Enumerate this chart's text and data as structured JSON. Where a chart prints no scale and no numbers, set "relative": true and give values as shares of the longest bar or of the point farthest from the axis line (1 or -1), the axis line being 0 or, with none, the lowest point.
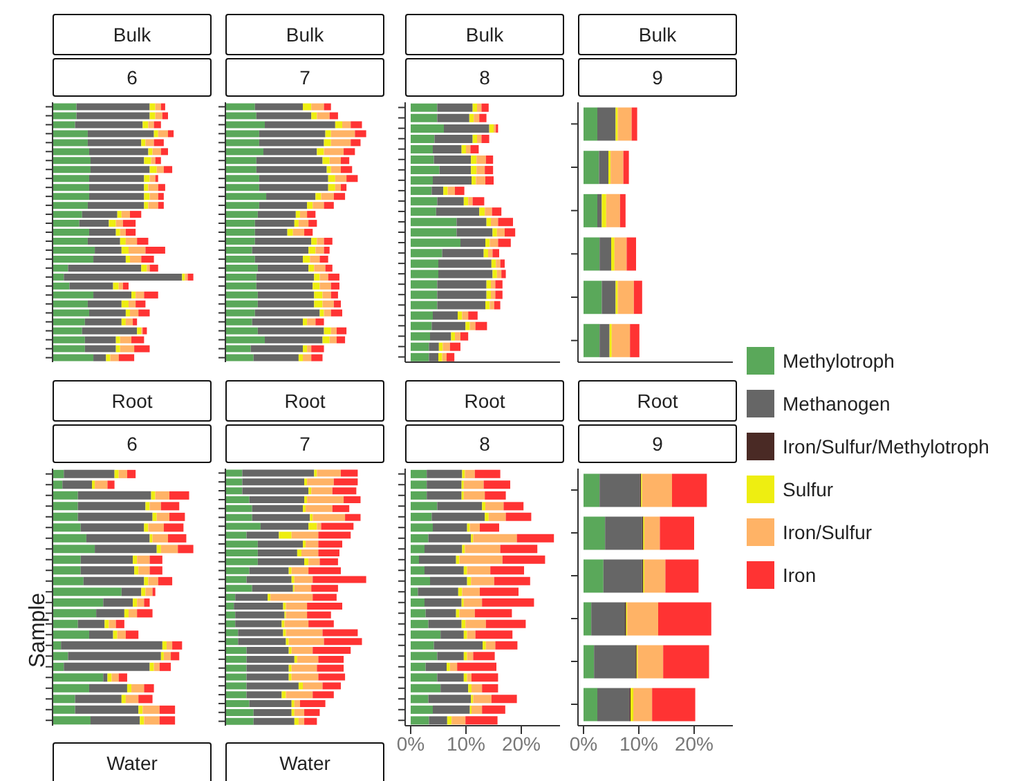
{
  "chart_data": [
    {
      "type": "bar",
      "stacked": true,
      "orientation": "horizontal",
      "title": "Bulk",
      "subtitle": "6",
      "tick_labels": false,
      "relative": true,
      "categories": [
        null,
        null,
        null,
        null,
        null,
        null,
        null,
        null,
        null,
        null,
        null,
        null,
        null,
        null,
        null,
        null,
        null,
        null,
        null,
        null,
        null,
        null,
        null,
        null,
        null,
        null,
        null,
        null,
        null
      ],
      "series": [
        {
          "color": "#5aa85a",
          "values": [
            0.17,
            0.17,
            0.16,
            0.25,
            0.25,
            0.26,
            0.27,
            0.27,
            0.26,
            0.26,
            0.26,
            0.25,
            0.21,
            0.19,
            0.26,
            0.25,
            0.3,
            0.29,
            0.11,
            0.08,
            0.12,
            0.29,
            0.25,
            0.26,
            0.23,
            0.21,
            0.23,
            0.23,
            0.29
          ]
        },
        {
          "color": "#666666",
          "values": [
            0.52,
            0.52,
            0.48,
            0.47,
            0.38,
            0.42,
            0.38,
            0.42,
            0.39,
            0.39,
            0.39,
            0.4,
            0.25,
            0.21,
            0.19,
            0.23,
            0.19,
            0.23,
            0.52,
            0.84,
            0.31,
            0.27,
            0.24,
            0.26,
            0.26,
            0.39,
            0.22,
            0.22,
            0.09
          ]
        },
        {
          "color": "#eeee11",
          "values": [
            0.04,
            0.04,
            0.04,
            0.03,
            0.03,
            0.03,
            0.05,
            0.05,
            0.04,
            0.03,
            0.04,
            0.03,
            0.03,
            0.05,
            0.03,
            0.04,
            0.05,
            0.03,
            0.04,
            0.02,
            0.04,
            0.03,
            0.05,
            0.03,
            0.03,
            0.03,
            0.03,
            0.03,
            0.03
          ]
        },
        {
          "color": "#ffb366",
          "values": [
            0.04,
            0.05,
            0.04,
            0.07,
            0.06,
            0.06,
            0.03,
            0.05,
            0.04,
            0.07,
            0.06,
            0.07,
            0.06,
            0.05,
            0.04,
            0.08,
            0.12,
            0.08,
            0.02,
            0.02,
            0.03,
            0.06,
            0.05,
            0.06,
            0.05,
            0.01,
            0.08,
            0.1,
            0.06
          ]
        },
        {
          "color": "#ff3333",
          "values": [
            0.03,
            0.04,
            0.05,
            0.04,
            0.07,
            0.05,
            0.04,
            0.06,
            0.02,
            0.05,
            0.04,
            0.04,
            0.08,
            0.09,
            0.07,
            0.08,
            0.14,
            0.09,
            0.06,
            0.04,
            0.04,
            0.1,
            0.07,
            0.08,
            0.03,
            0.03,
            0.09,
            0.11,
            0.11
          ]
        }
      ]
    },
    {
      "type": "bar",
      "stacked": true,
      "orientation": "horizontal",
      "title": "Bulk",
      "subtitle": "7",
      "tick_labels": false,
      "relative": true,
      "categories": [
        null,
        null,
        null,
        null,
        null,
        null,
        null,
        null,
        null,
        null,
        null,
        null,
        null,
        null,
        null,
        null,
        null,
        null,
        null,
        null,
        null,
        null,
        null,
        null,
        null,
        null,
        null,
        null,
        null
      ],
      "series": [
        {
          "color": "#5aa85a",
          "values": [
            0.21,
            0.22,
            0.28,
            0.24,
            0.24,
            0.27,
            0.22,
            0.22,
            0.24,
            0.24,
            0.29,
            0.24,
            0.23,
            0.21,
            0.21,
            0.21,
            0.19,
            0.21,
            0.23,
            0.22,
            0.22,
            0.23,
            0.23,
            0.21,
            0.19,
            0.23,
            0.28,
            0.18,
            0.2
          ]
        },
        {
          "color": "#666666",
          "values": [
            0.34,
            0.39,
            0.5,
            0.47,
            0.46,
            0.38,
            0.47,
            0.5,
            0.49,
            0.49,
            0.35,
            0.34,
            0.27,
            0.28,
            0.23,
            0.4,
            0.4,
            0.34,
            0.36,
            0.41,
            0.4,
            0.4,
            0.4,
            0.46,
            0.36,
            0.47,
            0.41,
            0.37,
            0.32
          ]
        },
        {
          "color": "#eeee11",
          "values": [
            0.06,
            0.04,
            0.05,
            0.04,
            0.05,
            0.05,
            0.05,
            0.03,
            0.05,
            0.05,
            0.04,
            0.04,
            0.03,
            0.03,
            0.04,
            0.04,
            0.05,
            0.05,
            0.04,
            0.04,
            0.05,
            0.06,
            0.06,
            0.03,
            0.03,
            0.05,
            0.05,
            0.03,
            0.03
          ]
        },
        {
          "color": "#ffb366",
          "values": [
            0.09,
            0.09,
            0.06,
            0.17,
            0.14,
            0.14,
            0.08,
            0.07,
            0.08,
            0.04,
            0.09,
            0.08,
            0.05,
            0.07,
            0.08,
            0.05,
            0.06,
            0.07,
            0.08,
            0.06,
            0.08,
            0.06,
            0.08,
            0.05,
            0.06,
            0.04,
            0.05,
            0.03,
            0.06
          ]
        },
        {
          "color": "#ff3333",
          "values": [
            0.05,
            0.06,
            0.08,
            0.08,
            0.07,
            0.08,
            0.06,
            0.08,
            0.08,
            0.04,
            0.08,
            0.07,
            0.06,
            0.06,
            0.06,
            0.06,
            0.04,
            0.06,
            0.05,
            0.08,
            0.06,
            0.05,
            0.05,
            0.08,
            0.06,
            0.07,
            0.06,
            0.09,
            0.08
          ]
        }
      ]
    },
    {
      "type": "bar",
      "stacked": true,
      "orientation": "horizontal",
      "title": "Bulk",
      "subtitle": "8",
      "tick_labels": false,
      "xlim": [
        -1,
        27
      ],
      "categories": [
        null,
        null,
        null,
        null,
        null,
        null,
        null,
        null,
        null,
        null,
        null,
        null,
        null,
        null,
        null,
        null,
        null,
        null,
        null,
        null,
        null,
        null,
        null,
        null,
        null
      ],
      "series": [
        {
          "color": "#5aa85a",
          "values": [
            4.8,
            4.8,
            6.0,
            4.3,
            4.0,
            4.2,
            5.2,
            4.0,
            3.8,
            4.8,
            4.6,
            8.3,
            8.3,
            9.0,
            5.7,
            5.0,
            5.0,
            4.8,
            4.8,
            4.8,
            4.0,
            3.8,
            3.5,
            3.3,
            3.3
          ]
        },
        {
          "color": "#666666",
          "values": [
            6.4,
            5.8,
            8.2,
            6.9,
            5.2,
            6.7,
            5.7,
            7.0,
            2.1,
            4.8,
            7.8,
            5.4,
            6.5,
            4.5,
            7.5,
            9.6,
            9.8,
            8.9,
            8.9,
            8.7,
            4.5,
            6.1,
            3.8,
            1.8,
            1.7
          ]
        },
        {
          "color": "#eeee11",
          "values": [
            0.8,
            0.8,
            0.8,
            0.8,
            0.8,
            1.0,
            1.0,
            0.8,
            0.8,
            0.8,
            1.0,
            0.8,
            0.8,
            0.8,
            0.8,
            0.8,
            0.8,
            0.8,
            0.8,
            0.8,
            0.8,
            0.8,
            0.7,
            0.7,
            0.7
          ]
        },
        {
          "color": "#ffb366",
          "values": [
            0.8,
            1.0,
            0.4,
            0.8,
            0.8,
            1.7,
            1.5,
            1.7,
            1.3,
            0.8,
            1.3,
            1.3,
            1.4,
            1.5,
            0.8,
            0.8,
            0.8,
            0.8,
            0.8,
            0.8,
            1.1,
            1.0,
            1.0,
            1.3,
            0.8
          ]
        },
        {
          "color": "#ff3333",
          "values": [
            1.3,
            1.3,
            0.4,
            1.4,
            1.5,
            1.3,
            1.5,
            1.5,
            1.7,
            2.1,
            1.7,
            2.7,
            1.9,
            2.3,
            1.2,
            0.8,
            0.8,
            1.3,
            1.3,
            1.1,
            1.7,
            2.1,
            1.4,
            1.9,
            1.4
          ]
        }
      ]
    },
    {
      "type": "bar",
      "stacked": true,
      "orientation": "horizontal",
      "title": "Bulk",
      "subtitle": "9",
      "tick_labels": false,
      "xlim": [
        -1,
        27
      ],
      "categories": [
        null,
        null,
        null,
        null,
        null,
        null
      ],
      "series": [
        {
          "color": "#5aa85a",
          "values": [
            2.5,
            2.8,
            2.5,
            2.9,
            3.3,
            2.9
          ]
        },
        {
          "color": "#666666",
          "values": [
            3.3,
            1.7,
            0.8,
            2.1,
            2.5,
            1.8
          ]
        },
        {
          "color": "#eeee11",
          "values": [
            0.4,
            0.4,
            0.8,
            0.6,
            0.4,
            0.4
          ]
        },
        {
          "color": "#ffb366",
          "values": [
            2.5,
            2.3,
            2.5,
            2.2,
            2.9,
            3.3
          ]
        },
        {
          "color": "#ff3333",
          "values": [
            1.0,
            1.0,
            1.0,
            1.7,
            1.5,
            1.7
          ]
        }
      ]
    },
    {
      "type": "bar",
      "stacked": true,
      "orientation": "horizontal",
      "title": "Root",
      "subtitle": "6",
      "ylabel": "Sample",
      "tick_labels": false,
      "relative": true,
      "categories": [
        null,
        null,
        null,
        null,
        null,
        null,
        null,
        null,
        null,
        null,
        null,
        null,
        null,
        null,
        null,
        null,
        null,
        null,
        null,
        null,
        null,
        null,
        null,
        null
      ],
      "series": [
        {
          "color": "#5aa85a",
          "values": [
            0.08,
            0.07,
            0.18,
            0.18,
            0.18,
            0.2,
            0.24,
            0.3,
            0.2,
            0.2,
            0.22,
            0.49,
            0.36,
            0.31,
            0.18,
            0.26,
            0.06,
            0.11,
            0.08,
            0.36,
            0.26,
            0.16,
            0.16,
            0.27
          ]
        },
        {
          "color": "#666666",
          "values": [
            0.36,
            0.21,
            0.52,
            0.48,
            0.53,
            0.45,
            0.45,
            0.44,
            0.37,
            0.38,
            0.43,
            0.14,
            0.21,
            0.2,
            0.19,
            0.17,
            0.72,
            0.66,
            0.61,
            0.03,
            0.27,
            0.33,
            0.45,
            0.35
          ]
        },
        {
          "color": "#eeee11",
          "values": [
            0.03,
            0.02,
            0.03,
            0.03,
            0.03,
            0.03,
            0.02,
            0.03,
            0.03,
            0.03,
            0.03,
            0.03,
            0.03,
            0.03,
            0.03,
            0.03,
            0.03,
            0.02,
            0.03,
            0.03,
            0.03,
            0.03,
            0.03,
            0.03
          ]
        },
        {
          "color": "#ffb366",
          "values": [
            0.06,
            0.09,
            0.1,
            0.08,
            0.09,
            0.11,
            0.11,
            0.12,
            0.09,
            0.08,
            0.07,
            0.05,
            0.05,
            0.06,
            0.05,
            0.06,
            0.04,
            0.05,
            0.04,
            0.05,
            0.09,
            0.09,
            0.12,
            0.11
          ]
        },
        {
          "color": "#ff3333",
          "values": [
            0.06,
            0.05,
            0.14,
            0.13,
            0.11,
            0.14,
            0.13,
            0.11,
            0.09,
            0.09,
            0.1,
            0.02,
            0.04,
            0.11,
            0.06,
            0.09,
            0.07,
            0.06,
            0.08,
            0.06,
            0.07,
            0.1,
            0.11,
            0.11
          ]
        }
      ]
    },
    {
      "type": "bar",
      "stacked": true,
      "orientation": "horizontal",
      "title": "Root",
      "subtitle": "7",
      "tick_labels": false,
      "relative": true,
      "categories": [
        null,
        null,
        null,
        null,
        null,
        null,
        null,
        null,
        null,
        null,
        null,
        null,
        null,
        null,
        null,
        null,
        null,
        null,
        null,
        null,
        null,
        null,
        null,
        null,
        null,
        null,
        null,
        null,
        null
      ],
      "series": [
        {
          "color": "#5aa85a",
          "values": [
            0.12,
            0.12,
            0.12,
            0.17,
            0.19,
            0.19,
            0.25,
            0.15,
            0.23,
            0.23,
            0.23,
            0.17,
            0.15,
            0.19,
            0.07,
            0.06,
            0.07,
            0.07,
            0.09,
            0.09,
            0.15,
            0.15,
            0.15,
            0.15,
            0.15,
            0.15,
            0.17,
            0.2,
            0.2
          ]
        },
        {
          "color": "#666666",
          "values": [
            0.51,
            0.44,
            0.47,
            0.39,
            0.36,
            0.41,
            0.34,
            0.23,
            0.32,
            0.28,
            0.33,
            0.28,
            0.32,
            0.29,
            0.23,
            0.35,
            0.35,
            0.33,
            0.32,
            0.34,
            0.3,
            0.34,
            0.3,
            0.3,
            0.37,
            0.25,
            0.3,
            0.27,
            0.29
          ]
        },
        {
          "color": "#eeee11",
          "values": [
            0.02,
            0.02,
            0.02,
            0.02,
            0.02,
            0.02,
            0.06,
            0.09,
            0.02,
            0.03,
            0.03,
            0.02,
            0.02,
            0.01,
            0.02,
            0.02,
            0.01,
            0.02,
            0.02,
            0.02,
            0.02,
            0.02,
            0.02,
            0.02,
            0.03,
            0.03,
            0.02,
            0.02,
            0.03
          ]
        },
        {
          "color": "#ffb366",
          "values": [
            0.17,
            0.19,
            0.15,
            0.26,
            0.19,
            0.23,
            0.03,
            0.19,
            0.09,
            0.12,
            0.08,
            0.12,
            0.13,
            0.12,
            0.3,
            0.15,
            0.15,
            0.17,
            0.26,
            0.25,
            0.15,
            0.15,
            0.18,
            0.19,
            0.14,
            0.19,
            0.04,
            0.07,
            0.04
          ]
        },
        {
          "color": "#ff3333",
          "values": [
            0.12,
            0.17,
            0.17,
            0.12,
            0.12,
            0.11,
            0.23,
            0.23,
            0.17,
            0.15,
            0.13,
            0.23,
            0.38,
            0.19,
            0.17,
            0.25,
            0.17,
            0.18,
            0.25,
            0.27,
            0.27,
            0.18,
            0.19,
            0.19,
            0.13,
            0.15,
            0.18,
            0.11,
            0.09
          ]
        }
      ]
    },
    {
      "type": "bar",
      "stacked": true,
      "orientation": "horizontal",
      "title": "Root",
      "subtitle": "8",
      "tick_labels": "x",
      "xlim": [
        -1,
        27
      ],
      "xticks": [
        {
          "value": 0,
          "label": "0%"
        },
        {
          "value": 10,
          "label": "10%"
        },
        {
          "value": 20,
          "label": "20%"
        }
      ],
      "categories": [
        null,
        null,
        null,
        null,
        null,
        null,
        null,
        null,
        null,
        null,
        null,
        null,
        null,
        null,
        null,
        null,
        null,
        null,
        null,
        null,
        null,
        null,
        null,
        null
      ],
      "series": [
        {
          "color": "#5aa85a",
          "values": [
            2.9,
            2.9,
            2.9,
            4.8,
            3.8,
            4.0,
            3.2,
            2.5,
            1.5,
            2.5,
            3.5,
            1.3,
            2.5,
            2.7,
            3.2,
            5.4,
            4.2,
            4.8,
            2.7,
            4.8,
            5.4,
            3.2,
            4.0,
            3.3
          ]
        },
        {
          "color": "#666666",
          "values": [
            6.4,
            6.3,
            6.3,
            8.1,
            9.6,
            6.2,
            7.7,
            6.8,
            6.7,
            7.1,
            6.7,
            7.3,
            6.7,
            5.5,
            6.0,
            4.2,
            8.8,
            4.8,
            3.8,
            4.8,
            5.0,
            7.7,
            6.7,
            3.3
          ]
        },
        {
          "color": "#eeee11",
          "values": [
            0.5,
            0.4,
            0.4,
            0.6,
            0.7,
            0.5,
            0.4,
            0.5,
            0.6,
            0.6,
            0.7,
            0.7,
            0.4,
            0.6,
            0.7,
            0.6,
            0.6,
            0.6,
            0.6,
            0.6,
            0.6,
            0.4,
            0.3,
            0.8
          ]
        },
        {
          "color": "#ffb366",
          "values": [
            1.8,
            3.6,
            3.8,
            3.3,
            3.1,
            1.8,
            7.9,
            6.4,
            7.8,
            4.2,
            4.2,
            3.2,
            3.3,
            2.8,
            3.7,
            1.5,
            1.7,
            1.1,
            1.3,
            0.8,
            1.9,
            3.3,
            1.9,
            2.5
          ]
        },
        {
          "color": "#ff3333",
          "values": [
            4.6,
            4.8,
            3.8,
            3.6,
            4.6,
            3.5,
            6.7,
            6.7,
            7.7,
            6.1,
            6.5,
            7.0,
            9.4,
            6.7,
            7.2,
            6.7,
            4.0,
            3.9,
            7.1,
            4.8,
            2.9,
            4.6,
            4.2,
            5.8
          ]
        }
      ]
    },
    {
      "type": "bar",
      "stacked": true,
      "orientation": "horizontal",
      "title": "Root",
      "subtitle": "9",
      "tick_labels": "x",
      "legend": "right",
      "xlim": [
        -1,
        27
      ],
      "xticks": [
        {
          "value": 0,
          "label": "0%"
        },
        {
          "value": 10,
          "label": "10%"
        },
        {
          "value": 20,
          "label": "20%"
        }
      ],
      "categories": [
        null,
        null,
        null,
        null,
        null,
        null
      ],
      "series": [
        {
          "name": "Methylotroph",
          "color": "#5aa85a",
          "values": [
            2.9,
            3.9,
            3.6,
            1.4,
            1.9,
            2.5
          ]
        },
        {
          "name": "Methanogen",
          "color": "#666666",
          "values": [
            7.3,
            6.7,
            7.0,
            6.1,
            7.5,
            5.8
          ]
        },
        {
          "name": "Iron/Sulfur/Methylotroph",
          "color": "#4a2a25",
          "values": [
            0.2,
            0.2,
            0.2,
            0.2,
            0.2,
            0.2
          ]
        },
        {
          "name": "Sulfur",
          "color": "#eeee11",
          "values": [
            0.2,
            0.2,
            0.2,
            0.2,
            0.2,
            0.5
          ]
        },
        {
          "name": "Iron/Sulfur",
          "color": "#ffb366",
          "values": [
            5.4,
            2.8,
            3.8,
            5.6,
            4.6,
            3.4
          ]
        },
        {
          "name": "Iron",
          "color": "#ff3333",
          "values": [
            6.3,
            6.2,
            6.0,
            9.6,
            8.3,
            7.8
          ]
        }
      ]
    },
    {
      "type": "other",
      "title": "Water"
    },
    {
      "type": "other",
      "title": "Water"
    }
  ]
}
